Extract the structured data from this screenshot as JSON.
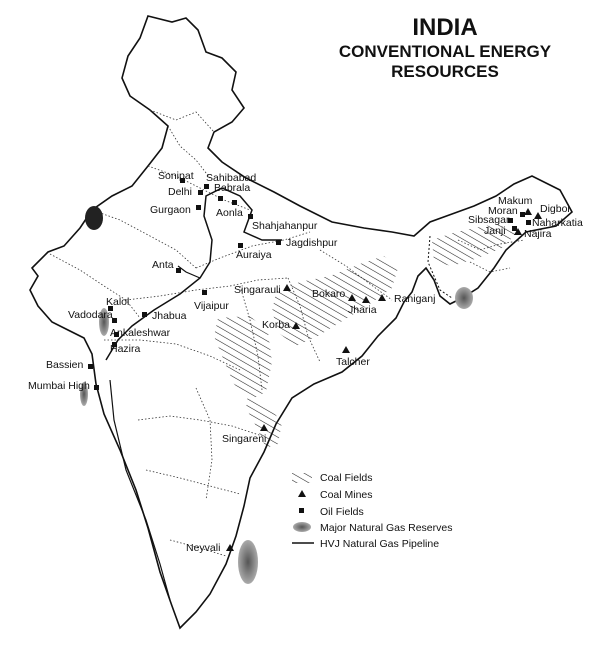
{
  "title": {
    "line1": "INDIA",
    "line2": "CONVENTIONAL ENERGY",
    "line3": "RESOURCES"
  },
  "legend": {
    "coal_fields": "Coal  Fields",
    "coal_mines": "Coal  Mines",
    "oil_fields": "Oil Fields",
    "gas_reserves": "Major Natural Gas Reserves",
    "pipeline": "HVJ Natural Gas Pipeline"
  },
  "places": {
    "sonipat": "Sonipat",
    "sahibabad": "Sahibabad",
    "delhi": "Delhi",
    "babrala": "Babrala",
    "gurgaon": "Gurgaon",
    "aonla": "Aonla",
    "shahjahanpur": "Shahjahanpur",
    "jagdishpur": "Jagdishpur",
    "auraiya": "Auraiya",
    "anta": "Anta",
    "singarauli": "Singarauli",
    "bokaro": "Bokaro",
    "raniganj": "Raniganj",
    "jharia": "Jharia",
    "korba": "Korba",
    "vijaipur": "Vijaipur",
    "kalol": "Kalol",
    "vadodara": "Vadodara",
    "jhabua": "Jhabua",
    "ankaleshwar": "Ankaleshwar",
    "hazira": "Hazira",
    "bassien": "Bassien",
    "mumbai_high": "Mumbai High",
    "talcher": "Talcher",
    "singareni": "Singareni",
    "neyvali": "Neyvali",
    "makum": "Makum",
    "moran": "Moran",
    "digboi": "Digboi",
    "sibsagar": "Sibsagar",
    "naharkatia": "Naharkatia",
    "janji": "Janji",
    "najira": "Najira"
  },
  "colors": {
    "ink": "#111111",
    "gas": "#7a7a7a",
    "border": "#222222"
  }
}
